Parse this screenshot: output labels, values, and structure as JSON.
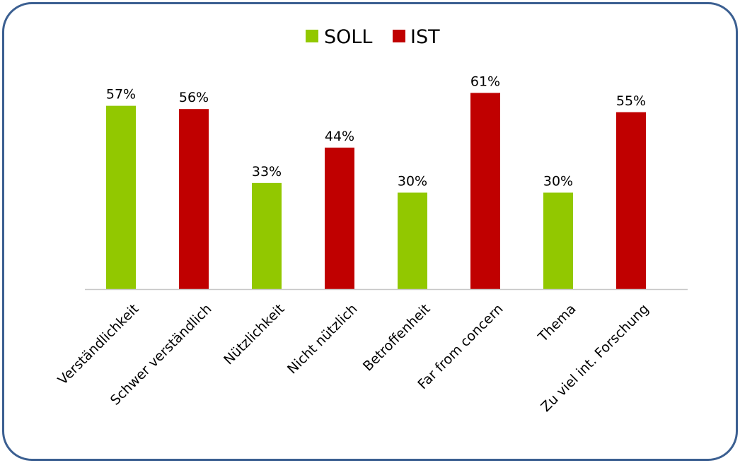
{
  "chart_data": {
    "type": "bar",
    "categories": [
      "Verständlichkeit",
      "Schwer verständlich",
      "Nützlichkeit",
      "Nicht nützlich",
      "Betroffenheit",
      "Far from concern",
      "Thema",
      "Zu viel int. Forschung"
    ],
    "values": [
      57,
      56,
      33,
      44,
      30,
      61,
      30,
      55
    ],
    "value_labels": [
      "57%",
      "56%",
      "33%",
      "44%",
      "30%",
      "61%",
      "30%",
      "55%"
    ],
    "series_of_bar": [
      "SOLL",
      "IST",
      "SOLL",
      "IST",
      "SOLL",
      "IST",
      "SOLL",
      "IST"
    ],
    "series": [
      {
        "name": "SOLL",
        "color": "#92c800"
      },
      {
        "name": "IST",
        "color": "#c00000"
      }
    ],
    "legend_position": "top-center",
    "ylim": [
      0,
      100
    ],
    "grid": false,
    "axis_color": "#c8c8c8",
    "frame_color": "#3b5f91"
  }
}
